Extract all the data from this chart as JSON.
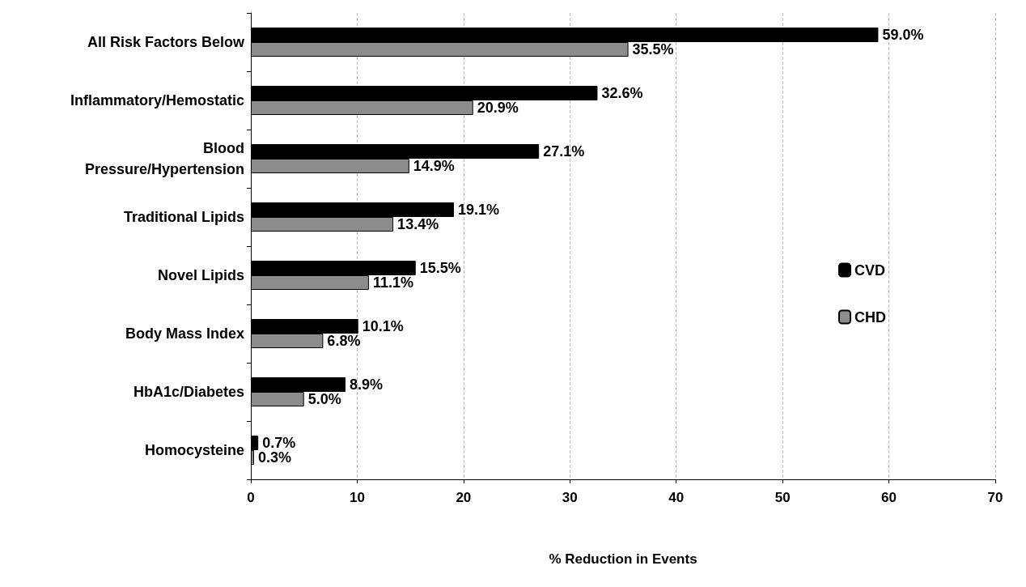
{
  "chart_data": {
    "type": "bar",
    "orientation": "horizontal",
    "xlabel": "% Reduction in Events",
    "categories": [
      "All Risk Factors Below",
      "Inflammatory/Hemostatic",
      "Blood\nPressure/Hypertension",
      "Traditional Lipids",
      "Novel Lipids",
      "Body Mass Index",
      "HbA1c/Diabetes",
      "Homocysteine"
    ],
    "series": [
      {
        "name": "CVD",
        "color": "#000000",
        "values": [
          59.0,
          32.6,
          27.1,
          19.1,
          15.5,
          10.1,
          8.9,
          0.7
        ],
        "value_labels": [
          "59.0%",
          "32.6%",
          "27.1%",
          "19.1%",
          "15.5%",
          "10.1%",
          "8.9%",
          "0.7%"
        ]
      },
      {
        "name": "CHD",
        "color": "#8c8c8c",
        "values": [
          35.5,
          20.9,
          14.9,
          13.4,
          11.1,
          6.8,
          5.0,
          0.3
        ],
        "value_labels": [
          "35.5%",
          "20.9%",
          "14.9%",
          "13.4%",
          "11.1%",
          "6.8%",
          "5.0%",
          "0.3%"
        ]
      }
    ],
    "xlim": [
      0,
      70
    ],
    "xticks": [
      0,
      10,
      20,
      30,
      40,
      50,
      60,
      70
    ],
    "grid": "x",
    "legend": "right"
  }
}
